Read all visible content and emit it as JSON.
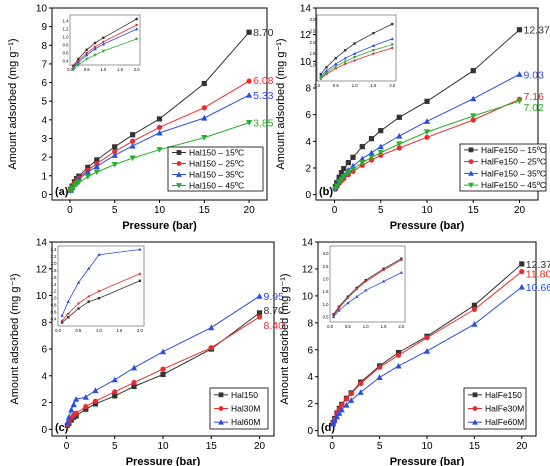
{
  "colors": {
    "black": "#333333",
    "red": "#ee2b2b",
    "blue": "#2b4de6",
    "green": "#25b027"
  },
  "chart_data": [
    {
      "panel": "(a)",
      "type": "line",
      "xlabel": "Pressure (bar)",
      "ylabel": "Amount adsorbed (mg g⁻¹)",
      "xlim": [
        -2,
        22
      ],
      "ylim": [
        -0.3,
        10
      ],
      "xticks": [
        0,
        5,
        10,
        15,
        20
      ],
      "yticks": [
        0,
        1,
        2,
        3,
        4,
        5,
        6,
        7,
        8,
        9,
        10
      ],
      "legend_position": "bottom-right",
      "series": [
        {
          "name": "Hal150 – 15ºC",
          "color": "black",
          "marker": "square",
          "end_label": "8.70",
          "x": [
            0.1,
            0.25,
            0.5,
            0.75,
            1,
            2,
            3,
            5,
            7,
            10,
            15,
            20
          ],
          "y": [
            0.28,
            0.45,
            0.68,
            0.85,
            0.98,
            1.45,
            1.85,
            2.55,
            3.2,
            4.05,
            5.95,
            8.7
          ]
        },
        {
          "name": "Hal150 – 25ºC",
          "color": "red",
          "marker": "circle",
          "end_label": "6.08",
          "x": [
            0.1,
            0.25,
            0.5,
            0.75,
            1,
            2,
            3,
            5,
            7,
            10,
            15,
            20
          ],
          "y": [
            0.25,
            0.4,
            0.6,
            0.75,
            0.88,
            1.3,
            1.65,
            2.3,
            2.85,
            3.6,
            4.65,
            6.08
          ]
        },
        {
          "name": "Hal150 – 35ºC",
          "color": "blue",
          "marker": "triangle-up",
          "end_label": "5.33",
          "x": [
            0.1,
            0.25,
            0.5,
            0.75,
            1,
            2,
            3,
            5,
            7,
            10,
            15,
            20
          ],
          "y": [
            0.22,
            0.36,
            0.55,
            0.7,
            0.82,
            1.2,
            1.5,
            2.1,
            2.6,
            3.3,
            4.1,
            5.33
          ]
        },
        {
          "name": "Hal150 – 45ºC",
          "color": "green",
          "marker": "triangle-down",
          "end_label": "3.85",
          "x": [
            0.1,
            0.25,
            0.5,
            0.75,
            1,
            2,
            3,
            5,
            7,
            10,
            15,
            20
          ],
          "y": [
            0.18,
            0.3,
            0.45,
            0.55,
            0.65,
            0.95,
            1.2,
            1.6,
            1.95,
            2.4,
            3.05,
            3.85
          ]
        }
      ],
      "inset": {
        "xlim": [
          0,
          2.1
        ],
        "ylim": [
          0.3,
          1.55
        ],
        "xticks": [
          "0.0",
          "0.5",
          "1.0",
          "1.5",
          "2.0"
        ],
        "yticks": [
          "0.4",
          "0.6",
          "0.8",
          "1.0",
          "1.2",
          "1.4"
        ]
      }
    },
    {
      "panel": "(b)",
      "type": "line",
      "xlabel": "Pressure (bar)",
      "ylabel": "Amount adsorbed (mg g⁻¹)",
      "xlim": [
        -2,
        22
      ],
      "ylim": [
        -0.4,
        14
      ],
      "xticks": [
        0,
        5,
        10,
        15,
        20
      ],
      "yticks": [
        0,
        2,
        4,
        6,
        8,
        10,
        12,
        14
      ],
      "legend_position": "bottom-right",
      "series": [
        {
          "name": "HalFe150 – 15ºC",
          "color": "black",
          "marker": "square",
          "end_label": "12.37",
          "x": [
            0.1,
            0.25,
            0.5,
            0.75,
            1,
            1.5,
            2,
            3,
            4,
            5,
            7,
            10,
            15,
            20
          ],
          "y": [
            0.6,
            0.9,
            1.3,
            1.65,
            1.95,
            2.4,
            2.8,
            3.6,
            4.2,
            4.8,
            5.8,
            7.0,
            9.3,
            12.37
          ]
        },
        {
          "name": "HalFe150 – 25ºC",
          "color": "red",
          "marker": "circle",
          "end_label": "7.16",
          "x": [
            0.1,
            0.25,
            0.5,
            0.75,
            1,
            1.5,
            2,
            3,
            4,
            5,
            7,
            10,
            15,
            20
          ],
          "y": [
            0.4,
            0.6,
            0.85,
            1.05,
            1.2,
            1.5,
            1.75,
            2.2,
            2.6,
            2.95,
            3.5,
            4.3,
            5.6,
            7.16
          ]
        },
        {
          "name": "HalFe150 – 35ºC",
          "color": "blue",
          "marker": "triangle-up",
          "end_label": "9.03",
          "x": [
            0.1,
            0.25,
            0.5,
            0.75,
            1,
            1.5,
            2,
            3,
            4,
            5,
            7,
            10,
            15,
            20
          ],
          "y": [
            0.5,
            0.75,
            1.05,
            1.3,
            1.5,
            1.85,
            2.15,
            2.7,
            3.15,
            3.6,
            4.4,
            5.5,
            7.2,
            9.03
          ]
        },
        {
          "name": "HalFe150 – 45ºC",
          "color": "green",
          "marker": "triangle-down",
          "end_label": "7.02",
          "x": [
            0.1,
            0.25,
            0.5,
            0.75,
            1,
            1.5,
            2,
            3,
            4,
            5,
            7,
            10,
            15,
            20
          ],
          "y": [
            0.45,
            0.65,
            0.95,
            1.15,
            1.35,
            1.65,
            1.9,
            2.4,
            2.8,
            3.15,
            3.8,
            4.7,
            5.9,
            7.02
          ]
        }
      ],
      "inset": {
        "xlim": [
          0,
          2.1
        ],
        "ylim": [
          0.3,
          3.2
        ],
        "xticks": [
          "0.0",
          "0.5",
          "1.0",
          "1.5",
          "2.0"
        ],
        "yticks": [
          "1.0",
          "1.5",
          "2.0",
          "2.5",
          "3.0"
        ]
      }
    },
    {
      "panel": "(c)",
      "type": "line",
      "xlabel": "Pressure (bar)",
      "ylabel": "Amount adsorbed (mg g⁻¹)",
      "xlim": [
        -1.5,
        21.5
      ],
      "ylim": [
        -0.5,
        14
      ],
      "xticks": [
        0,
        5,
        10,
        15,
        20
      ],
      "yticks": [
        0,
        2,
        4,
        6,
        8,
        10,
        12,
        14
      ],
      "legend_position": "bottom-right",
      "series": [
        {
          "name": "Hal150",
          "color": "black",
          "marker": "square",
          "end_label": "8.70",
          "x": [
            0.1,
            0.25,
            0.5,
            0.75,
            1,
            2,
            3,
            5,
            7,
            10,
            15,
            20
          ],
          "y": [
            0.3,
            0.45,
            0.7,
            0.9,
            1.0,
            1.5,
            1.9,
            2.5,
            3.2,
            4.1,
            6.0,
            8.7
          ]
        },
        {
          "name": "Hal30M",
          "color": "red",
          "marker": "circle",
          "end_label": "8.40",
          "x": [
            0.1,
            0.25,
            0.5,
            0.75,
            1,
            2,
            3,
            5,
            7,
            10,
            15,
            20
          ],
          "y": [
            0.35,
            0.55,
            0.85,
            1.05,
            1.2,
            1.7,
            2.1,
            2.8,
            3.5,
            4.5,
            6.1,
            8.4
          ]
        },
        {
          "name": "Hal60M",
          "color": "blue",
          "marker": "triangle-up",
          "end_label": "9.95",
          "x": [
            0.1,
            0.25,
            0.5,
            0.75,
            1,
            2,
            3,
            5,
            7,
            10,
            15,
            20
          ],
          "y": [
            0.5,
            0.9,
            1.45,
            1.85,
            2.25,
            2.4,
            2.9,
            3.7,
            4.6,
            5.8,
            7.6,
            9.95
          ]
        }
      ],
      "inset": {
        "xlim": [
          0,
          2.1
        ],
        "ylim": [
          0.2,
          2.5
        ],
        "xticks": [
          "0.0",
          "0.5",
          "1.0",
          "1.5",
          "2.0"
        ],
        "yticks": [
          "0.4",
          "0.6",
          "0.8",
          "1.0",
          "1.2",
          "1.4",
          "1.6",
          "1.8",
          "2.0",
          "2.2",
          "2.4"
        ]
      }
    },
    {
      "panel": "(d)",
      "type": "line",
      "xlabel": "Pressure (bar)",
      "ylabel": "Amount adsorbed (mg g⁻¹)",
      "xlim": [
        -1.5,
        21.5
      ],
      "ylim": [
        -0.4,
        14
      ],
      "xticks": [
        0,
        5,
        10,
        15,
        20
      ],
      "yticks": [
        0,
        2,
        4,
        6,
        8,
        10,
        12,
        14
      ],
      "legend_position": "bottom-right",
      "series": [
        {
          "name": "HalFe150",
          "color": "black",
          "marker": "square",
          "end_label": "12.37",
          "x": [
            0.1,
            0.25,
            0.5,
            0.75,
            1,
            1.5,
            2,
            3,
            5,
            7,
            10,
            15,
            20
          ],
          "y": [
            0.6,
            0.9,
            1.3,
            1.65,
            1.95,
            2.4,
            2.8,
            3.6,
            4.8,
            5.8,
            7.0,
            9.3,
            12.37
          ]
        },
        {
          "name": "HalFe30M",
          "color": "red",
          "marker": "circle",
          "end_label": "11.80",
          "x": [
            0.1,
            0.25,
            0.5,
            0.75,
            1,
            1.5,
            2,
            3,
            5,
            7,
            10,
            15,
            20
          ],
          "y": [
            0.55,
            0.85,
            1.25,
            1.6,
            1.9,
            2.35,
            2.75,
            3.5,
            4.7,
            5.6,
            6.9,
            9.0,
            11.8
          ]
        },
        {
          "name": "HalFe60M",
          "color": "blue",
          "marker": "triangle-up",
          "end_label": "10.66",
          "x": [
            0.1,
            0.25,
            0.5,
            0.75,
            1,
            1.5,
            2,
            3,
            5,
            7,
            10,
            15,
            20
          ],
          "y": [
            0.5,
            0.75,
            1.05,
            1.3,
            1.55,
            1.9,
            2.25,
            2.85,
            3.95,
            4.8,
            5.9,
            7.9,
            10.66
          ]
        }
      ],
      "inset": {
        "xlim": [
          0,
          2.1
        ],
        "ylim": [
          0.3,
          3.3
        ],
        "xticks": [
          "0.0",
          "0.5",
          "1.0",
          "1.5",
          "2.0"
        ],
        "yticks": [
          "0.5",
          "1.0",
          "1.5",
          "2.0",
          "2.5",
          "3.0"
        ]
      }
    }
  ]
}
